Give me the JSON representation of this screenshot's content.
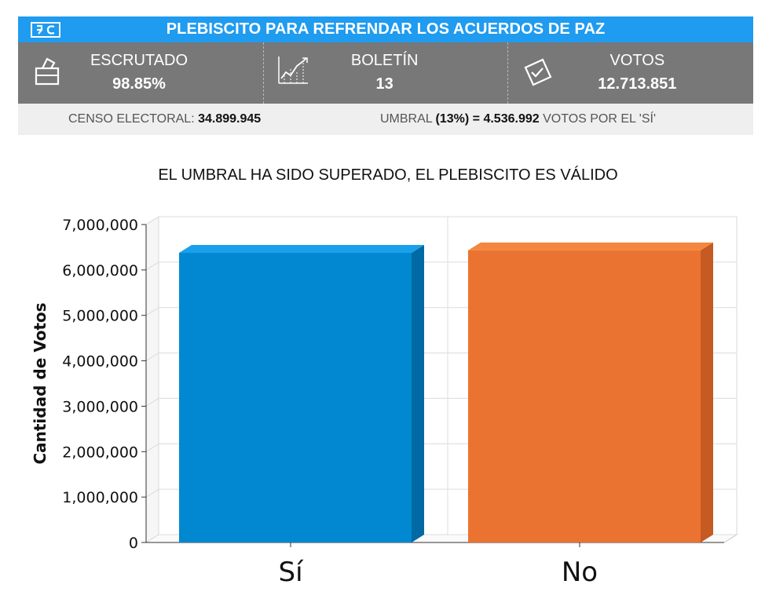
{
  "header": {
    "title": "PLEBISCITO PARA REFRENDAR LOS ACUERDOS DE PAZ",
    "logo_text": "RC",
    "color": "#1f9bf0"
  },
  "stats": [
    {
      "label": "ESCRUTADO",
      "value": "98.85%",
      "icon": "ballot-box-icon"
    },
    {
      "label": "BOLETÍN",
      "value": "13",
      "icon": "line-chart-icon"
    },
    {
      "label": "VOTOS",
      "value": "12.713.851",
      "icon": "vote-paper-icon"
    }
  ],
  "info": {
    "censo_label": "CENSO ELECTORAL:",
    "censo_value": "34.899.945",
    "umbral_label": "UMBRAL",
    "umbral_value": "(13%) = 4.536.992",
    "umbral_suffix": "VOTOS POR EL 'SÍ'"
  },
  "subtitle": "EL UMBRAL HA SIDO SUPERADO, EL PLEBISCITO ES VÁLIDO",
  "chart_data": {
    "type": "bar",
    "title": "",
    "xlabel": "",
    "ylabel": "Cantidad de Votos",
    "categories": [
      "Sí",
      "No"
    ],
    "values": [
      6377482,
      6431376
    ],
    "ylim": [
      0,
      7000000
    ],
    "yticks": [
      0,
      1000000,
      2000000,
      3000000,
      4000000,
      5000000,
      6000000,
      7000000
    ],
    "ytick_labels": [
      "0",
      "1,000,000",
      "2,000,000",
      "3,000,000",
      "4,000,000",
      "5,000,000",
      "6,000,000",
      "7,000,000"
    ],
    "colors": [
      "#0288d1",
      "#eb7331"
    ],
    "side_colors": [
      "#0169a4",
      "#c55a22"
    ],
    "top_colors": [
      "#1aa0ea",
      "#f3873f"
    ],
    "grid": true,
    "style": "3d"
  }
}
